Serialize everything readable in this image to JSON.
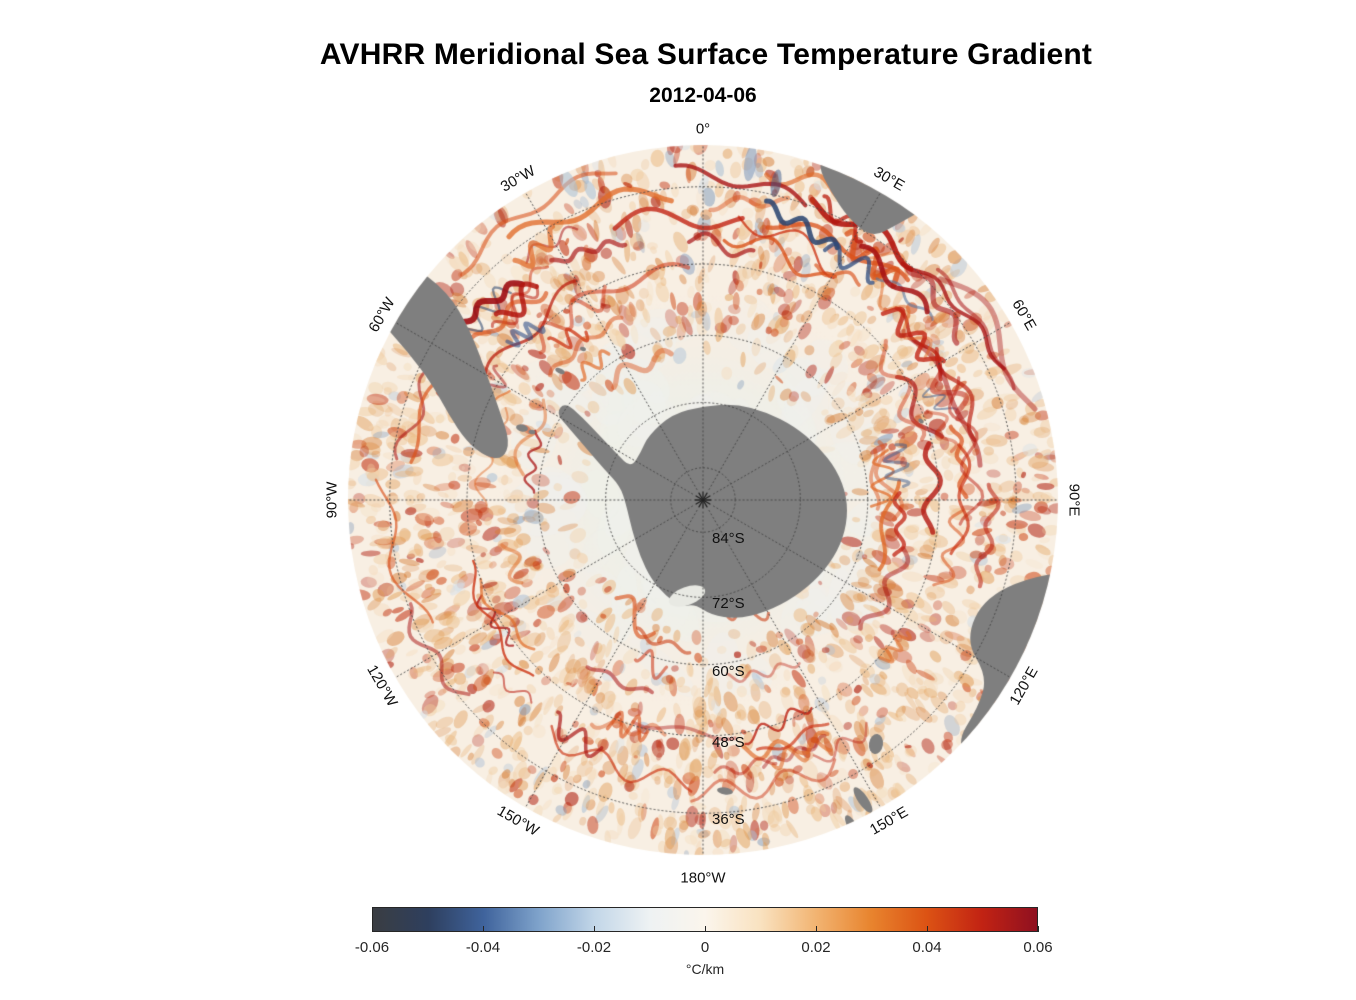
{
  "figure": {
    "title": "AVHRR Meridional Sea Surface Temperature Gradient",
    "subtitle": "2012-04-06"
  },
  "chart_data": {
    "type": "heatmap",
    "title": "AVHRR Meridional Sea Surface Temperature Gradient",
    "date": "2012-04-06",
    "variable": "meridional sea surface temperature gradient",
    "units": "°C/km",
    "projection": "south polar stereographic, South Pole centered, outer edge near 30°S",
    "grid": "dotted graticule: meridians every 30°, parallels every 12°",
    "legend_position": "bottom horizontal colorbar",
    "colorbar": {
      "min": -0.06,
      "max": 0.06,
      "ticks": [
        -0.06,
        -0.04,
        -0.02,
        0,
        0.02,
        0.04,
        0.06
      ],
      "tick_labels": [
        "-0.06",
        "-0.04",
        "-0.02",
        "0",
        "0.02",
        "0.04",
        "0.06"
      ],
      "label": "°C/km",
      "gradient": [
        "#3a3d42",
        "#2e3f5e",
        "#3f639c",
        "#7fa3cb",
        "#c2d6e8",
        "#eef2f3",
        "#fbf5ec",
        "#f9e2c0",
        "#f2b472",
        "#e8842e",
        "#dc5314",
        "#c22313",
        "#8f1020"
      ]
    },
    "longitude_labels": [
      {
        "text": "0°",
        "deg": 0
      },
      {
        "text": "30°E",
        "deg": 30
      },
      {
        "text": "60°E",
        "deg": 60
      },
      {
        "text": "90°E",
        "deg": 90
      },
      {
        "text": "120°E",
        "deg": 120
      },
      {
        "text": "150°E",
        "deg": 150
      },
      {
        "text": "180°W",
        "deg": 180
      },
      {
        "text": "150°W",
        "deg": 210
      },
      {
        "text": "120°W",
        "deg": 240
      },
      {
        "text": "90°W",
        "deg": 270
      },
      {
        "text": "60°W",
        "deg": 300
      },
      {
        "text": "30°W",
        "deg": 330
      }
    ],
    "latitude_labels": [
      {
        "text": "84°S",
        "lat": 84
      },
      {
        "text": "72°S",
        "lat": 72
      },
      {
        "text": "60°S",
        "lat": 60
      },
      {
        "text": "48°S",
        "lat": 48
      },
      {
        "text": "36°S",
        "lat": 36
      }
    ],
    "colors": {
      "land": "#7f7f7f",
      "ocean_base": "#f8efe3",
      "ice": "#eff0ec",
      "grid": "#464646",
      "strong_positive": "#c22313",
      "strong_negative": "#27426e"
    }
  }
}
